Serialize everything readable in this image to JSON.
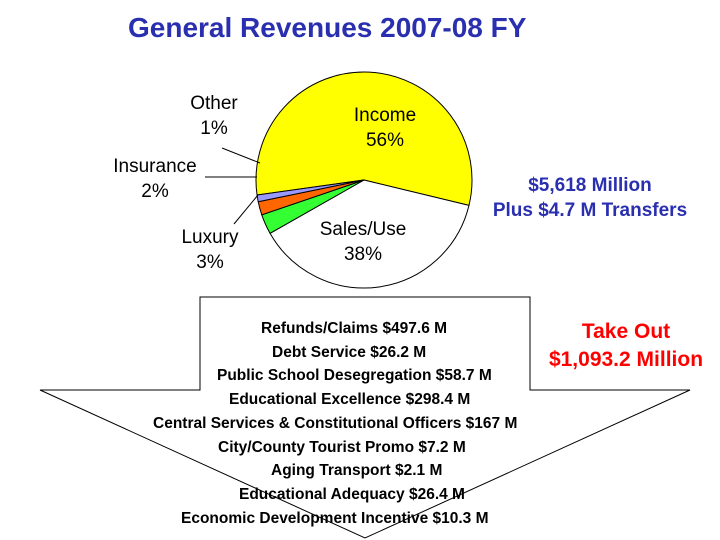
{
  "title": "General Revenues 2007-08 FY",
  "chart_data": {
    "type": "pie",
    "title": "General Revenues 2007-08 FY",
    "slices": [
      {
        "label": "Income",
        "pct_label": "56%",
        "value": 56,
        "color": "#ffff00"
      },
      {
        "label": "Sales/Use",
        "pct_label": "38%",
        "value": 38,
        "color": "#ffffff"
      },
      {
        "label": "Luxury",
        "pct_label": "3%",
        "value": 3,
        "color": "#33ff33"
      },
      {
        "label": "Insurance",
        "pct_label": "2%",
        "value": 2,
        "color": "#ff6600"
      },
      {
        "label": "Other",
        "pct_label": "1%",
        "value": 1,
        "color": "#9999ff"
      }
    ]
  },
  "total": {
    "line1": "$5,618 Million",
    "line2": "Plus $4.7 M Transfers"
  },
  "takeout": {
    "line1": "Take Out",
    "line2": "$1,093.2 Million"
  },
  "deductions": [
    "Refunds/Claims $497.6 M",
    "Debt Service $26.2 M",
    "Public School Desegregation $58.7 M",
    "Educational Excellence $298.4 M",
    "Central Services & Constitutional Officers $167 M",
    "City/County Tourist Promo $7.2 M",
    "Aging Transport $2.1 M",
    "Educational Adequacy $26.4 M",
    "Economic Development Incentive $10.3 M"
  ]
}
